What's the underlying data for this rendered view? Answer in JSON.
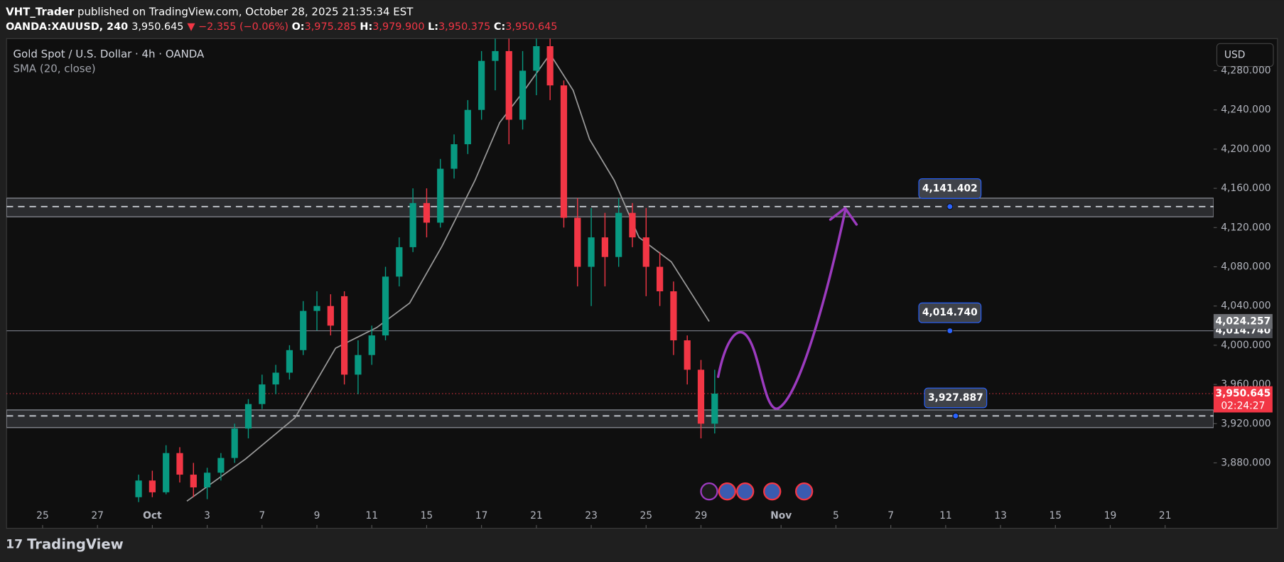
{
  "header": {
    "publisher": "VHT_Trader",
    "published": "published on TradingView.com, October 28, 2025 21:35:34 EST",
    "symbol": "OANDA:XAUUSD, 240",
    "price": "3,950.645",
    "change": "▼ −2.355 (−0.06%)",
    "ohlc": [
      {
        "label": "O:",
        "value": "3,975.285"
      },
      {
        "label": "H:",
        "value": "3,979.900"
      },
      {
        "label": "L:",
        "value": "3,950.375"
      },
      {
        "label": "C:",
        "value": "3,950.645"
      }
    ]
  },
  "footer": {
    "brand": "TradingView"
  },
  "chart_data": {
    "type": "candlestick",
    "title": "Gold Spot / U.S. Dollar · 4h · OANDA",
    "currency": "USD",
    "up_color": "#089981",
    "down_color": "#f23645",
    "x": [
      1.75,
      2,
      2.25,
      2.5,
      2.75,
      3,
      3.25,
      3.5,
      3.75,
      4,
      4.25,
      4.5,
      4.75,
      5,
      5.25,
      5.5,
      5.75,
      6,
      6.25,
      6.5,
      6.75,
      7,
      7.25,
      7.5,
      7.75,
      8,
      8.25,
      8.5,
      8.75,
      9,
      9.25,
      9.5,
      9.75,
      10,
      10.25,
      10.5,
      10.75,
      11,
      11.25,
      11.5,
      11.75,
      12,
      12.25
    ],
    "open": [
      3845,
      3862,
      3850,
      3890,
      3868,
      3855,
      3870,
      3885,
      3915,
      3940,
      3960,
      3972,
      3995,
      4035,
      4040,
      4050,
      3970,
      3990,
      4010,
      4070,
      4100,
      4145,
      4125,
      4180,
      4205,
      4240,
      4290,
      4300,
      4230,
      4280,
      4305,
      4265,
      4130,
      4080,
      4110,
      4090,
      4135,
      4110,
      4080,
      4055,
      4005,
      3975,
      3920
    ],
    "high": [
      3868,
      3872,
      3898,
      3896,
      3880,
      3875,
      3890,
      3920,
      3945,
      3970,
      3980,
      4000,
      4045,
      4055,
      4052,
      4055,
      4005,
      4020,
      4080,
      4110,
      4160,
      4160,
      4190,
      4215,
      4250,
      4300,
      4320,
      4315,
      4300,
      4320,
      4320,
      4270,
      4150,
      4140,
      4135,
      4150,
      4145,
      4140,
      4095,
      4065,
      4010,
      3985,
      3975
    ],
    "low": [
      3840,
      3845,
      3848,
      3860,
      3845,
      3843,
      3862,
      3880,
      3905,
      3935,
      3950,
      3965,
      3990,
      4015,
      4010,
      3960,
      3950,
      3980,
      4005,
      4060,
      4095,
      4110,
      4120,
      4170,
      4195,
      4230,
      4260,
      4205,
      4220,
      4255,
      4250,
      4120,
      4060,
      4040,
      4060,
      4080,
      4100,
      4050,
      4040,
      3990,
      3960,
      3905,
      3910
    ],
    "close": [
      3862,
      3850,
      3890,
      3868,
      3855,
      3870,
      3885,
      3915,
      3940,
      3960,
      3972,
      3995,
      4035,
      4040,
      4020,
      3970,
      3990,
      4010,
      4070,
      4100,
      4145,
      4125,
      4180,
      4205,
      4240,
      4290,
      4300,
      4230,
      4280,
      4305,
      4265,
      4130,
      4080,
      4110,
      4090,
      4135,
      4110,
      4080,
      4055,
      4005,
      3975,
      3920,
      3950.645
    ],
    "sma": {
      "name": "SMA (20, close)",
      "color": "#9a9a9a",
      "x": [
        2.63,
        3.7,
        4.6,
        5.34,
        6.09,
        6.69,
        7.28,
        7.88,
        8.33,
        8.78,
        9.25,
        9.67,
        9.97,
        10.42,
        10.87,
        11.46,
        12.15
      ],
      "values": [
        3841,
        3884,
        3926,
        3997,
        4018,
        4043,
        4101,
        4168,
        4227,
        4260,
        4297,
        4260,
        4210,
        4168,
        4110,
        4085,
        4024.257
      ],
      "last": {
        "value": 4024.257,
        "label": "4,024.257"
      }
    },
    "levels": [
      {
        "value": 4141.402,
        "label": "4,141.402",
        "band": [
          4131,
          4150
        ],
        "style": "dashed",
        "show_on_axis": false
      },
      {
        "value": 4014.74,
        "label": "4,014.740",
        "style": "solid",
        "show_on_axis": true
      },
      {
        "value": 3927.887,
        "label": "3,927.887",
        "band": [
          3916,
          3934
        ],
        "style": "dashed",
        "show_on_axis": false
      }
    ],
    "last_price": {
      "value": 3950.645,
      "label": "3,950.645",
      "countdown": "02:24:27",
      "color": "#f23645"
    },
    "xlim": [
      -0.657,
      21.343
    ],
    "ylim": [
      3813.3,
      4312.7
    ],
    "xticks": [
      {
        "value": 0,
        "label": "25"
      },
      {
        "value": 1,
        "label": "27"
      },
      {
        "value": 2,
        "label": "Oct"
      },
      {
        "value": 3,
        "label": "3"
      },
      {
        "value": 4,
        "label": "7"
      },
      {
        "value": 5,
        "label": "9"
      },
      {
        "value": 6,
        "label": "11"
      },
      {
        "value": 7,
        "label": "15"
      },
      {
        "value": 8,
        "label": "17"
      },
      {
        "value": 9,
        "label": "21"
      },
      {
        "value": 10,
        "label": "23"
      },
      {
        "value": 11,
        "label": "25"
      },
      {
        "value": 12,
        "label": "29"
      },
      {
        "value": 13.46,
        "label": "Nov"
      },
      {
        "value": 14.46,
        "label": "5"
      },
      {
        "value": 15.46,
        "label": "7"
      },
      {
        "value": 16.46,
        "label": "11"
      },
      {
        "value": 17.46,
        "label": "13"
      },
      {
        "value": 18.46,
        "label": "15"
      },
      {
        "value": 19.46,
        "label": "19"
      },
      {
        "value": 20.46,
        "label": "21"
      }
    ],
    "yticks": [
      {
        "value": 3880,
        "label": "3,880.000"
      },
      {
        "value": 3920,
        "label": "3,920.000"
      },
      {
        "value": 3960,
        "label": "3,960.000"
      },
      {
        "value": 4000,
        "label": "4,000.000"
      },
      {
        "value": 4040,
        "label": "4,040.000"
      },
      {
        "value": 4080,
        "label": "4,080.000"
      },
      {
        "value": 4120,
        "label": "4,120.000"
      },
      {
        "value": 4160,
        "label": "4,160.000"
      },
      {
        "value": 4200,
        "label": "4,200.000"
      },
      {
        "value": 4240,
        "label": "4,240.000"
      },
      {
        "value": 4280,
        "label": "4,280.000"
      }
    ]
  }
}
